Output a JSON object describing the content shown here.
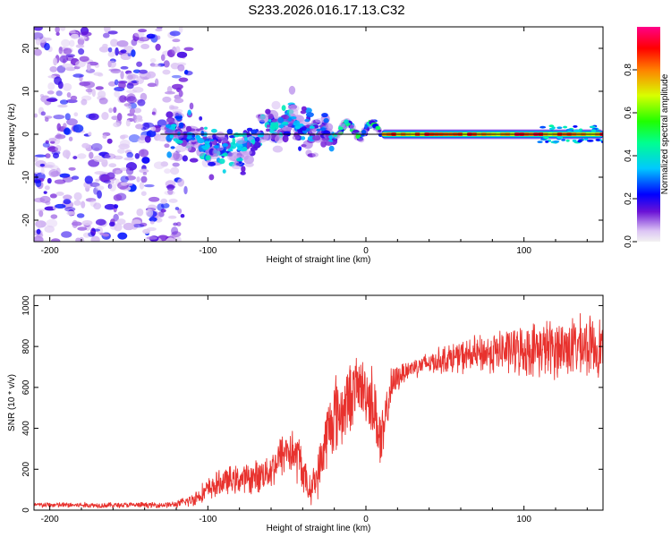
{
  "title": "S233.2026.016.17.13.C32",
  "colors": {
    "snr_line": "#e8322e",
    "axis": "#000000",
    "reference_line": "#000000",
    "scatter_purple": "#7a2fe0"
  },
  "chart_data": [
    {
      "type": "heatmap",
      "name": "spectrogram",
      "xlabel": "Height of straight line (km)",
      "ylabel": "Frequency (Hz)",
      "xlim": [
        -210,
        150
      ],
      "ylim": [
        -25,
        25
      ],
      "xticks": [
        -200,
        -100,
        0,
        100
      ],
      "yticks": [
        -20,
        -10,
        0,
        10,
        20
      ],
      "grid": false,
      "colorbar": {
        "label": "Normalized spectral amplitude",
        "range": [
          0,
          1
        ],
        "ticks": [
          "0.0",
          "0.2",
          "0.4",
          "0.6",
          "0.8"
        ],
        "tick_values": [
          0.0,
          0.2,
          0.4,
          0.6,
          0.8
        ],
        "stops": [
          [
            0.0,
            "#f2f2f2"
          ],
          [
            0.05,
            "#dcc4f4"
          ],
          [
            0.14,
            "#6a12d6"
          ],
          [
            0.22,
            "#0000ff"
          ],
          [
            0.34,
            "#00c8ff"
          ],
          [
            0.46,
            "#00ff90"
          ],
          [
            0.56,
            "#20ff00"
          ],
          [
            0.68,
            "#d8ff00"
          ],
          [
            0.8,
            "#ff8000"
          ],
          [
            0.9,
            "#ff0000"
          ],
          [
            1.0,
            "#ff0088"
          ]
        ]
      },
      "regions": [
        {
          "desc": "diffuse noise",
          "x_range": [
            -210,
            -115
          ],
          "freq_range": [
            -25,
            25
          ],
          "amplitude": 0.12
        },
        {
          "desc": "scattered signal",
          "x_range": [
            -125,
            -20
          ],
          "freq_range": [
            -10,
            8
          ],
          "amplitude": 0.3
        },
        {
          "desc": "converging signal",
          "x_range": [
            -20,
            10
          ],
          "freq_range": [
            -2,
            4
          ],
          "amplitude": 0.45
        },
        {
          "desc": "steady tone",
          "x_range": [
            10,
            150
          ],
          "freq_range": [
            0,
            0
          ],
          "amplitude": 0.9
        }
      ],
      "reference_line": {
        "frequency": 0,
        "x_range": [
          -130,
          150
        ]
      }
    },
    {
      "type": "line",
      "name": "snr",
      "xlabel": "Height of straight line (km)",
      "ylabel": "SNR (10 * v/v)",
      "xlim": [
        -210,
        150
      ],
      "ylim": [
        0,
        1050
      ],
      "xticks": [
        -200,
        -100,
        0,
        100
      ],
      "yticks": [
        0,
        200,
        400,
        600,
        800,
        1000
      ],
      "grid": false,
      "series": [
        {
          "name": "SNR",
          "x": [
            -210,
            -190,
            -170,
            -150,
            -130,
            -120,
            -110,
            -100,
            -90,
            -80,
            -70,
            -60,
            -50,
            -42,
            -36,
            -30,
            -25,
            -20,
            -15,
            -10,
            -5,
            0,
            5,
            10,
            15,
            20,
            25,
            30,
            40,
            50,
            60,
            70,
            80,
            90,
            100,
            110,
            120,
            130,
            140,
            150
          ],
          "mean": [
            25,
            25,
            24,
            25,
            25,
            28,
            50,
            100,
            140,
            150,
            160,
            200,
            300,
            250,
            90,
            180,
            360,
            470,
            480,
            560,
            610,
            580,
            520,
            300,
            580,
            650,
            680,
            700,
            720,
            740,
            750,
            760,
            770,
            780,
            780,
            790,
            790,
            800,
            800,
            800
          ],
          "noise": [
            12,
            12,
            12,
            12,
            12,
            14,
            30,
            50,
            60,
            60,
            70,
            80,
            110,
            110,
            60,
            100,
            150,
            180,
            160,
            150,
            130,
            140,
            160,
            150,
            90,
            60,
            45,
            45,
            50,
            60,
            70,
            80,
            90,
            100,
            110,
            120,
            130,
            130,
            130,
            130
          ]
        }
      ]
    }
  ]
}
